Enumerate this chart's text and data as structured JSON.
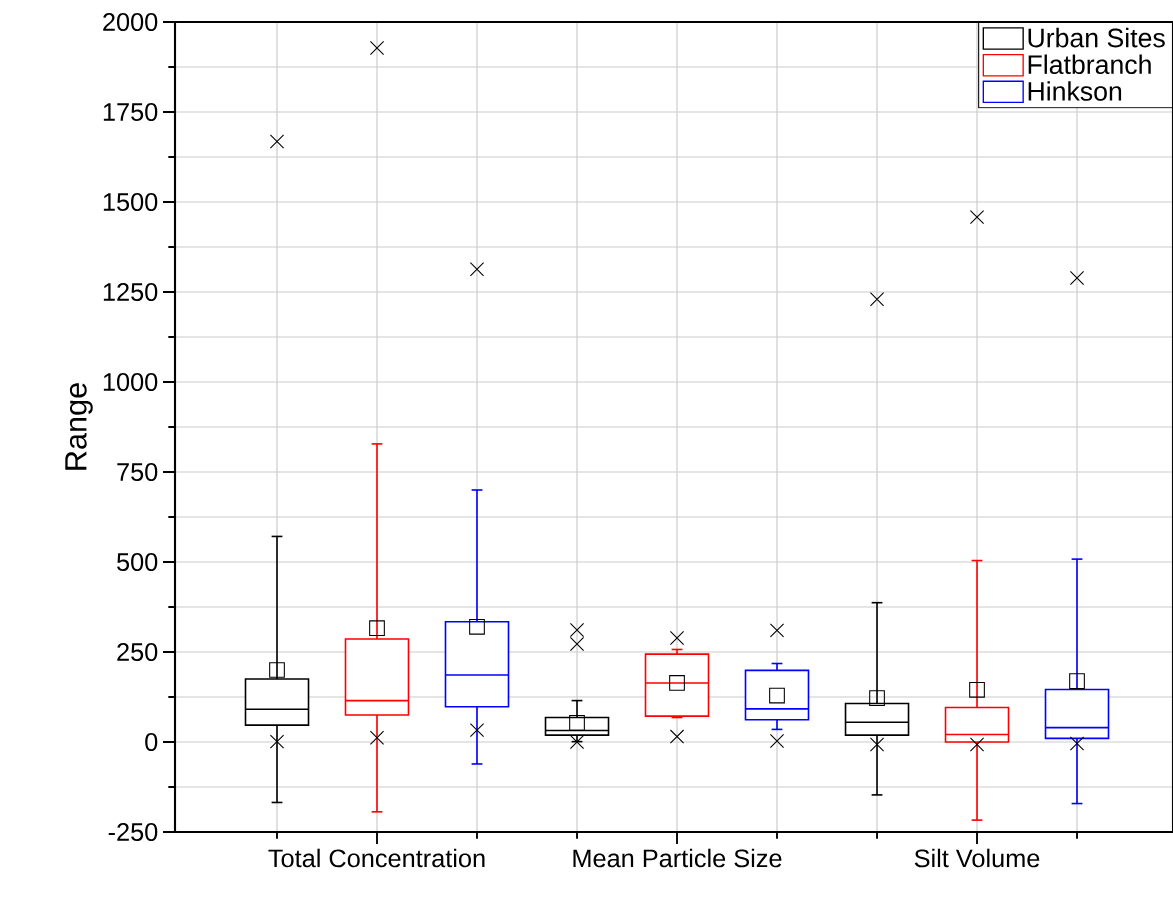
{
  "chart_data": {
    "type": "box",
    "ylabel": "Range",
    "categories": [
      "Total Concentration",
      "Mean Particle Size",
      "Silt Volume"
    ],
    "ylim": [
      -250,
      2000
    ],
    "yticks": [
      -250,
      0,
      250,
      500,
      750,
      1000,
      1250,
      1500,
      1750,
      2000
    ],
    "grid": true,
    "legend": "top right",
    "series": [
      {
        "name": "Urban Sites",
        "color": "#000000",
        "boxes": [
          {
            "low": -168,
            "q1": 47,
            "median": 91,
            "q3": 175,
            "high": 571,
            "mean": 200,
            "outliers": [
              1,
              1668
            ]
          },
          {
            "low": 1,
            "q1": 19,
            "median": 32,
            "q3": 68,
            "high": 115,
            "mean": 53,
            "outliers": [
              0,
              272,
              311
            ]
          },
          {
            "low": -147,
            "q1": 19,
            "median": 55,
            "q3": 107,
            "high": 387,
            "mean": 122,
            "outliers": [
              -7,
              1230
            ]
          }
        ]
      },
      {
        "name": "Flatbranch",
        "color": "#ff0000",
        "boxes": [
          {
            "low": -194,
            "q1": 75,
            "median": 115,
            "q3": 286,
            "high": 828,
            "mean": 316,
            "outliers": [
              12,
              1928
            ]
          },
          {
            "low": 68,
            "q1": 72,
            "median": 164,
            "q3": 244,
            "high": 257,
            "mean": 164,
            "outliers": [
              15,
              289
            ]
          },
          {
            "low": -217,
            "q1": 0,
            "median": 21,
            "q3": 96,
            "high": 504,
            "mean": 145,
            "outliers": [
              -7,
              1458
            ]
          }
        ]
      },
      {
        "name": "Hinkson",
        "color": "#0000ff",
        "boxes": [
          {
            "low": -61,
            "q1": 98,
            "median": 186,
            "q3": 334,
            "high": 700,
            "mean": 320,
            "outliers": [
              33,
              1313
            ]
          },
          {
            "low": 35,
            "q1": 62,
            "median": 92,
            "q3": 199,
            "high": 218,
            "mean": 129,
            "outliers": [
              3,
              310
            ]
          },
          {
            "low": -171,
            "q1": 10,
            "median": 40,
            "q3": 146,
            "high": 508,
            "mean": 169,
            "outliers": [
              -4,
              1289
            ]
          }
        ]
      }
    ]
  }
}
